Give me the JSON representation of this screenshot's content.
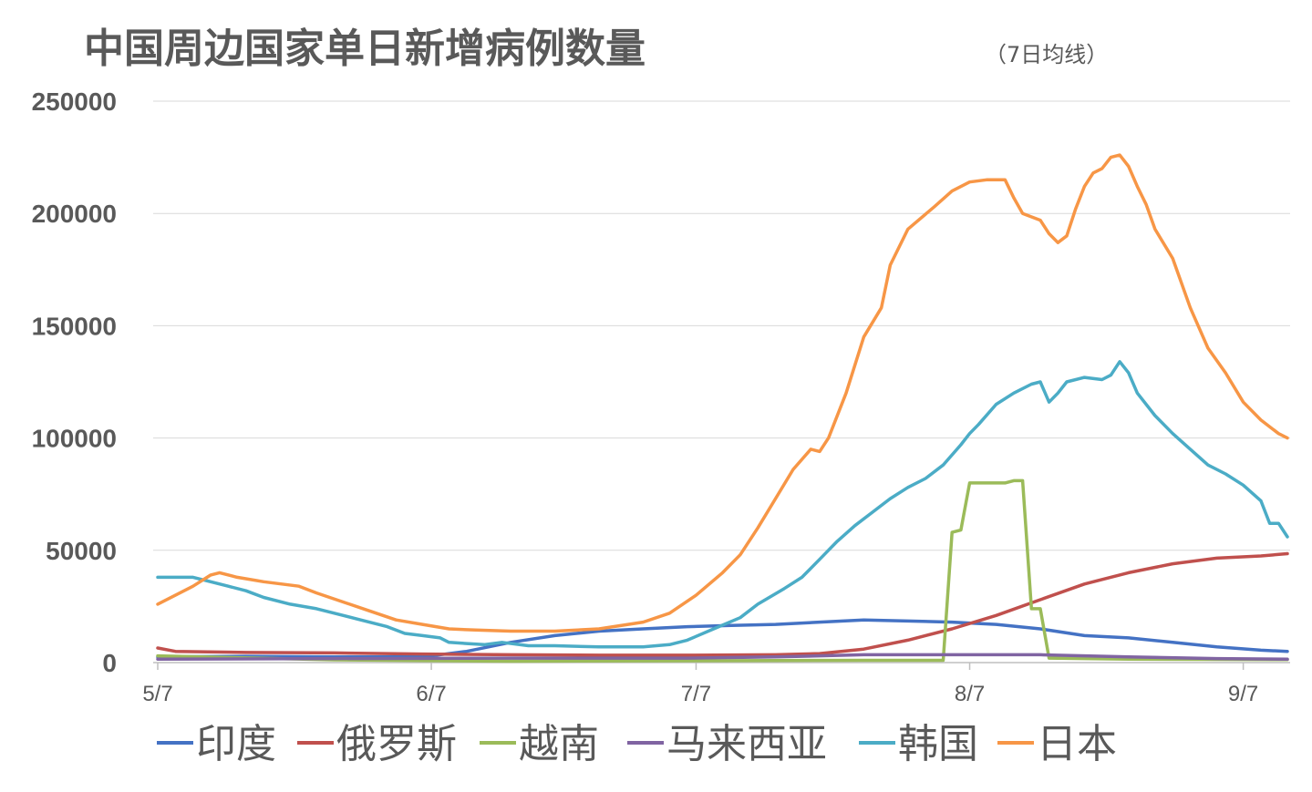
{
  "chart_data": {
    "type": "line",
    "title": "中国周边国家单日新增病例数量",
    "subtitle": "（7日均线）",
    "xlabel": "",
    "ylabel": "",
    "ylim": [
      0,
      250000
    ],
    "yticks": [
      "250000",
      "200000",
      "150000",
      "100000",
      "50000",
      "0"
    ],
    "xtick_labels": [
      "5/7",
      "6/7",
      "7/7",
      "8/7",
      "9/7"
    ],
    "x_days": [
      0,
      31,
      61,
      92,
      123
    ],
    "x_max_day": 128,
    "grid": true,
    "legend_position": "bottom",
    "series": [
      {
        "name": "印度",
        "color": "#4472C4",
        "points": [
          [
            0,
            2500
          ],
          [
            10,
            2800
          ],
          [
            20,
            2500
          ],
          [
            30,
            2500
          ],
          [
            35,
            5000
          ],
          [
            40,
            9000
          ],
          [
            45,
            12000
          ],
          [
            50,
            14000
          ],
          [
            55,
            15000
          ],
          [
            60,
            16000
          ],
          [
            65,
            16500
          ],
          [
            70,
            17000
          ],
          [
            75,
            18000
          ],
          [
            80,
            19000
          ],
          [
            85,
            18500
          ],
          [
            90,
            18000
          ],
          [
            95,
            17000
          ],
          [
            100,
            15000
          ],
          [
            105,
            12000
          ],
          [
            110,
            11000
          ],
          [
            115,
            9000
          ],
          [
            120,
            7000
          ],
          [
            125,
            5500
          ],
          [
            128,
            5000
          ]
        ]
      },
      {
        "name": "俄罗斯",
        "color": "#C0504D",
        "points": [
          [
            0,
            6500
          ],
          [
            2,
            5000
          ],
          [
            10,
            4500
          ],
          [
            20,
            4300
          ],
          [
            30,
            3800
          ],
          [
            40,
            3500
          ],
          [
            50,
            3300
          ],
          [
            60,
            3300
          ],
          [
            70,
            3500
          ],
          [
            75,
            4000
          ],
          [
            80,
            6000
          ],
          [
            85,
            10000
          ],
          [
            90,
            15000
          ],
          [
            95,
            21000
          ],
          [
            100,
            28000
          ],
          [
            105,
            35000
          ],
          [
            110,
            40000
          ],
          [
            115,
            44000
          ],
          [
            120,
            46500
          ],
          [
            125,
            47500
          ],
          [
            128,
            48500
          ]
        ]
      },
      {
        "name": "越南",
        "color": "#9BBB59",
        "points": [
          [
            0,
            3000
          ],
          [
            20,
            1200
          ],
          [
            40,
            600
          ],
          [
            60,
            800
          ],
          [
            80,
            1000
          ],
          [
            89,
            1000
          ],
          [
            90,
            58000
          ],
          [
            91,
            59000
          ],
          [
            92,
            80000
          ],
          [
            96,
            80000
          ],
          [
            97,
            81000
          ],
          [
            98,
            81000
          ],
          [
            99,
            24000
          ],
          [
            100,
            24000
          ],
          [
            101,
            2000
          ],
          [
            110,
            1500
          ],
          [
            128,
            1300
          ]
        ]
      },
      {
        "name": "马来西亚",
        "color": "#8064A2",
        "points": [
          [
            0,
            1500
          ],
          [
            20,
            1800
          ],
          [
            40,
            2000
          ],
          [
            60,
            2000
          ],
          [
            70,
            2500
          ],
          [
            80,
            3500
          ],
          [
            90,
            3500
          ],
          [
            100,
            3500
          ],
          [
            110,
            2500
          ],
          [
            120,
            1800
          ],
          [
            128,
            1500
          ]
        ]
      },
      {
        "name": "韩国",
        "color": "#4BACC6",
        "points": [
          [
            0,
            38000
          ],
          [
            4,
            38000
          ],
          [
            6,
            36000
          ],
          [
            8,
            34000
          ],
          [
            10,
            32000
          ],
          [
            12,
            29000
          ],
          [
            15,
            26000
          ],
          [
            18,
            24000
          ],
          [
            20,
            22000
          ],
          [
            23,
            19000
          ],
          [
            26,
            16000
          ],
          [
            28,
            13000
          ],
          [
            30,
            12000
          ],
          [
            32,
            11000
          ],
          [
            33,
            9000
          ],
          [
            35,
            8500
          ],
          [
            37,
            8000
          ],
          [
            39,
            9000
          ],
          [
            42,
            7500
          ],
          [
            45,
            7500
          ],
          [
            50,
            7000
          ],
          [
            55,
            7000
          ],
          [
            58,
            8000
          ],
          [
            60,
            10000
          ],
          [
            63,
            15000
          ],
          [
            66,
            20000
          ],
          [
            68,
            26000
          ],
          [
            71,
            33000
          ],
          [
            73,
            38000
          ],
          [
            75,
            46000
          ],
          [
            77,
            54000
          ],
          [
            79,
            61000
          ],
          [
            81,
            67000
          ],
          [
            83,
            73000
          ],
          [
            85,
            78000
          ],
          [
            87,
            82000
          ],
          [
            89,
            88000
          ],
          [
            91,
            97000
          ],
          [
            92,
            102000
          ],
          [
            93,
            106000
          ],
          [
            95,
            115000
          ],
          [
            97,
            120000
          ],
          [
            99,
            124000
          ],
          [
            100,
            125000
          ],
          [
            101,
            116000
          ],
          [
            102,
            120000
          ],
          [
            103,
            125000
          ],
          [
            105,
            127000
          ],
          [
            107,
            126000
          ],
          [
            108,
            128000
          ],
          [
            109,
            134000
          ],
          [
            110,
            129000
          ],
          [
            111,
            120000
          ],
          [
            113,
            110000
          ],
          [
            115,
            102000
          ],
          [
            117,
            95000
          ],
          [
            119,
            88000
          ],
          [
            121,
            84000
          ],
          [
            123,
            79000
          ],
          [
            125,
            72000
          ],
          [
            126,
            62000
          ],
          [
            127,
            62000
          ],
          [
            128,
            56000
          ]
        ]
      },
      {
        "name": "日本",
        "color": "#F79646",
        "points": [
          [
            0,
            26000
          ],
          [
            2,
            30000
          ],
          [
            4,
            34000
          ],
          [
            6,
            39000
          ],
          [
            7,
            40000
          ],
          [
            9,
            38000
          ],
          [
            12,
            36000
          ],
          [
            16,
            34000
          ],
          [
            18,
            31000
          ],
          [
            21,
            27000
          ],
          [
            24,
            23000
          ],
          [
            27,
            19000
          ],
          [
            30,
            17000
          ],
          [
            33,
            15000
          ],
          [
            36,
            14500
          ],
          [
            40,
            14000
          ],
          [
            45,
            14000
          ],
          [
            50,
            15000
          ],
          [
            55,
            18000
          ],
          [
            58,
            22000
          ],
          [
            61,
            30000
          ],
          [
            64,
            40000
          ],
          [
            66,
            48000
          ],
          [
            68,
            60000
          ],
          [
            70,
            73000
          ],
          [
            72,
            86000
          ],
          [
            74,
            95000
          ],
          [
            75,
            94000
          ],
          [
            76,
            100000
          ],
          [
            78,
            120000
          ],
          [
            80,
            145000
          ],
          [
            82,
            158000
          ],
          [
            83,
            177000
          ],
          [
            85,
            193000
          ],
          [
            88,
            203000
          ],
          [
            90,
            210000
          ],
          [
            92,
            214000
          ],
          [
            94,
            215000
          ],
          [
            96,
            215000
          ],
          [
            97,
            207000
          ],
          [
            98,
            200000
          ],
          [
            100,
            197000
          ],
          [
            101,
            191000
          ],
          [
            102,
            187000
          ],
          [
            103,
            190000
          ],
          [
            104,
            202000
          ],
          [
            105,
            212000
          ],
          [
            106,
            218000
          ],
          [
            107,
            220000
          ],
          [
            108,
            225000
          ],
          [
            109,
            226000
          ],
          [
            110,
            221000
          ],
          [
            111,
            212000
          ],
          [
            112,
            204000
          ],
          [
            113,
            193000
          ],
          [
            115,
            180000
          ],
          [
            117,
            158000
          ],
          [
            119,
            140000
          ],
          [
            121,
            129000
          ],
          [
            123,
            116000
          ],
          [
            125,
            108000
          ],
          [
            127,
            102000
          ],
          [
            128,
            100000
          ]
        ]
      }
    ]
  }
}
